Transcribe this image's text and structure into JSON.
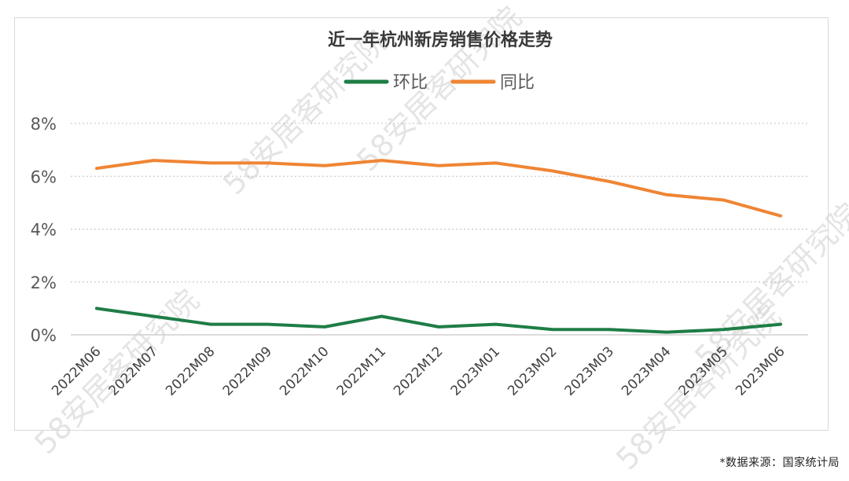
{
  "chart_data": {
    "type": "line",
    "title": "近一年杭州新房销售价格走势",
    "categories": [
      "2022M06",
      "2022M07",
      "2022M08",
      "2022M09",
      "2022M10",
      "2022M11",
      "2022M12",
      "2023M01",
      "2023M02",
      "2023M03",
      "2023M04",
      "2023M05",
      "2023M06"
    ],
    "series": [
      {
        "name": "环比",
        "color": "#1e7d46",
        "values": [
          1.0,
          0.7,
          0.4,
          0.4,
          0.3,
          0.7,
          0.3,
          0.4,
          0.2,
          0.2,
          0.1,
          0.2,
          0.4
        ]
      },
      {
        "name": "同比",
        "color": "#ef8534",
        "values": [
          6.3,
          6.6,
          6.5,
          6.5,
          6.4,
          6.6,
          6.4,
          6.5,
          6.2,
          5.8,
          5.3,
          5.1,
          4.5
        ]
      }
    ],
    "ylim": [
      0,
      8
    ],
    "yticks": [
      "0%",
      "2%",
      "4%",
      "6%",
      "8%"
    ],
    "ytick_values": [
      0,
      2,
      4,
      6,
      8
    ],
    "grid": true,
    "legend_position": "top-center"
  },
  "source_note": "*数据来源：国家统计局",
  "watermark": "58安居客研究院"
}
